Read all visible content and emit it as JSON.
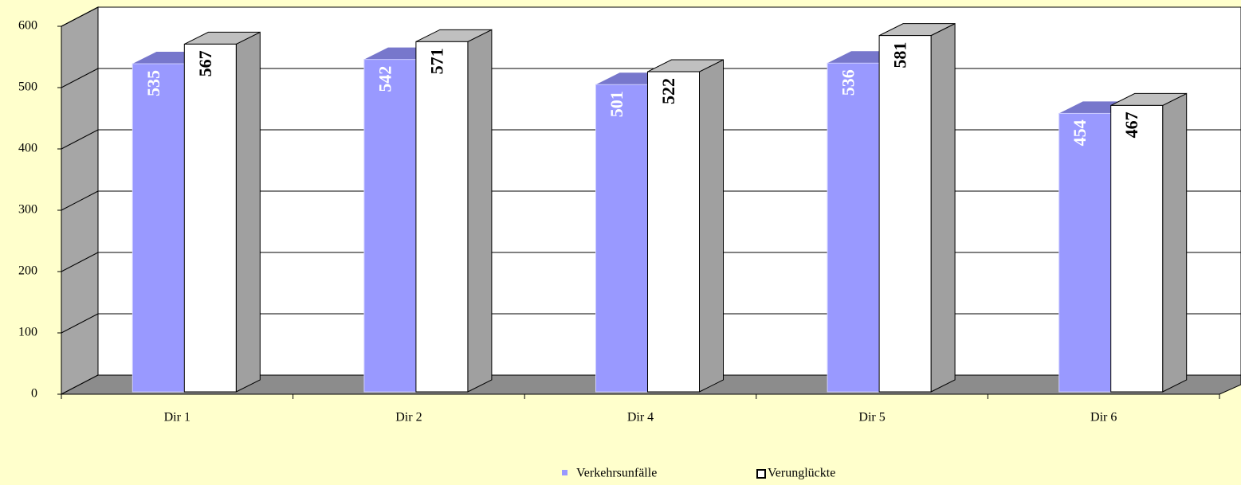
{
  "chart_data": {
    "type": "bar3d",
    "categories": [
      "Dir  1",
      "Dir  2",
      "Dir  4",
      "Dir  5",
      "Dir  6"
    ],
    "series": [
      {
        "name": "Verkehrsunfälle",
        "color": "#9999ff",
        "values": [
          535,
          542,
          501,
          536,
          454
        ]
      },
      {
        "name": "Verunglückte",
        "color": "#ffffff",
        "values": [
          567,
          571,
          522,
          581,
          467
        ]
      }
    ],
    "ylim": [
      0,
      600
    ],
    "yticks": [
      0,
      100,
      200,
      300,
      400,
      500,
      600
    ],
    "grid": true,
    "legend": "bottom"
  }
}
